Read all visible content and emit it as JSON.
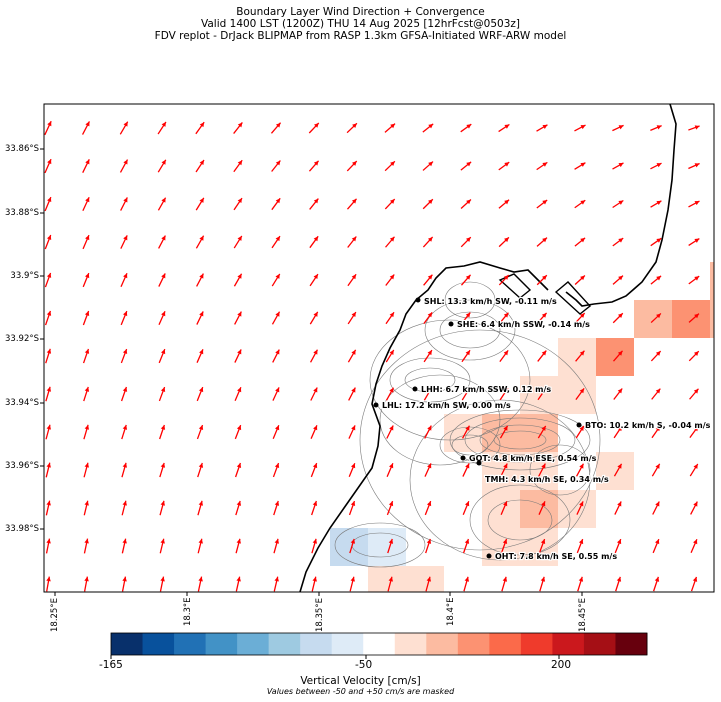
{
  "title": {
    "line1": "Boundary Layer Wind Direction + Convergence",
    "line2": "Valid 1400 LST (1200Z) THU 14 Aug 2025 [12hrFcst@0503z]",
    "line3": "FDV replot - DrJack BLIPMAP from RASP 1.3km GFSA-Initiated WRF-ARW model"
  },
  "axes": {
    "lat_ticks": [
      "33.86°S",
      "33.88°S",
      "33.9°S",
      "33.92°S",
      "33.94°S",
      "33.96°S",
      "33.98°S"
    ],
    "lon_ticks": [
      "18.25°E",
      "18.3°E",
      "18.35°E",
      "18.4°E",
      "18.45°E"
    ]
  },
  "sites": [
    {
      "label": "SHL: 13.3 km/h SW, -0.11 m/s"
    },
    {
      "label": "SHE: 6.4 km/h SSW, -0.14 m/s"
    },
    {
      "label": "LHH: 6.7 km/h SSW, 0.12 m/s"
    },
    {
      "label": "LHL: 17.2 km/h SW, 0.00 m/s"
    },
    {
      "label": "BTO: 10.2 km/h S, -0.04 m/s"
    },
    {
      "label": "GOT: 4.8 km/h ESE, 0.54 m/s"
    },
    {
      "label": "TMH: 4.3 km/h SE, 0.34 m/s"
    },
    {
      "label": "OHT: 7.8 km/h SE, 0.55 m/s"
    }
  ],
  "colorbar": {
    "min_label": "-165",
    "mid_label": "-50",
    "max_label": "200",
    "title": "Vertical Velocity [cm/s]",
    "note": "Values between -50 and +50 cm/s are masked",
    "colors": [
      "#08306b",
      "#08519c",
      "#2171b5",
      "#4292c6",
      "#6baed6",
      "#9ecae1",
      "#c6dbef",
      "#deebf7",
      "#ffffff",
      "#fee0d2",
      "#fcbba1",
      "#fc9272",
      "#fb6a4a",
      "#ef3b2c",
      "#cb181d",
      "#a50f15",
      "#67000d"
    ]
  },
  "wind_arrow_color": "#ff0000",
  "coastline_color": "#000000"
}
